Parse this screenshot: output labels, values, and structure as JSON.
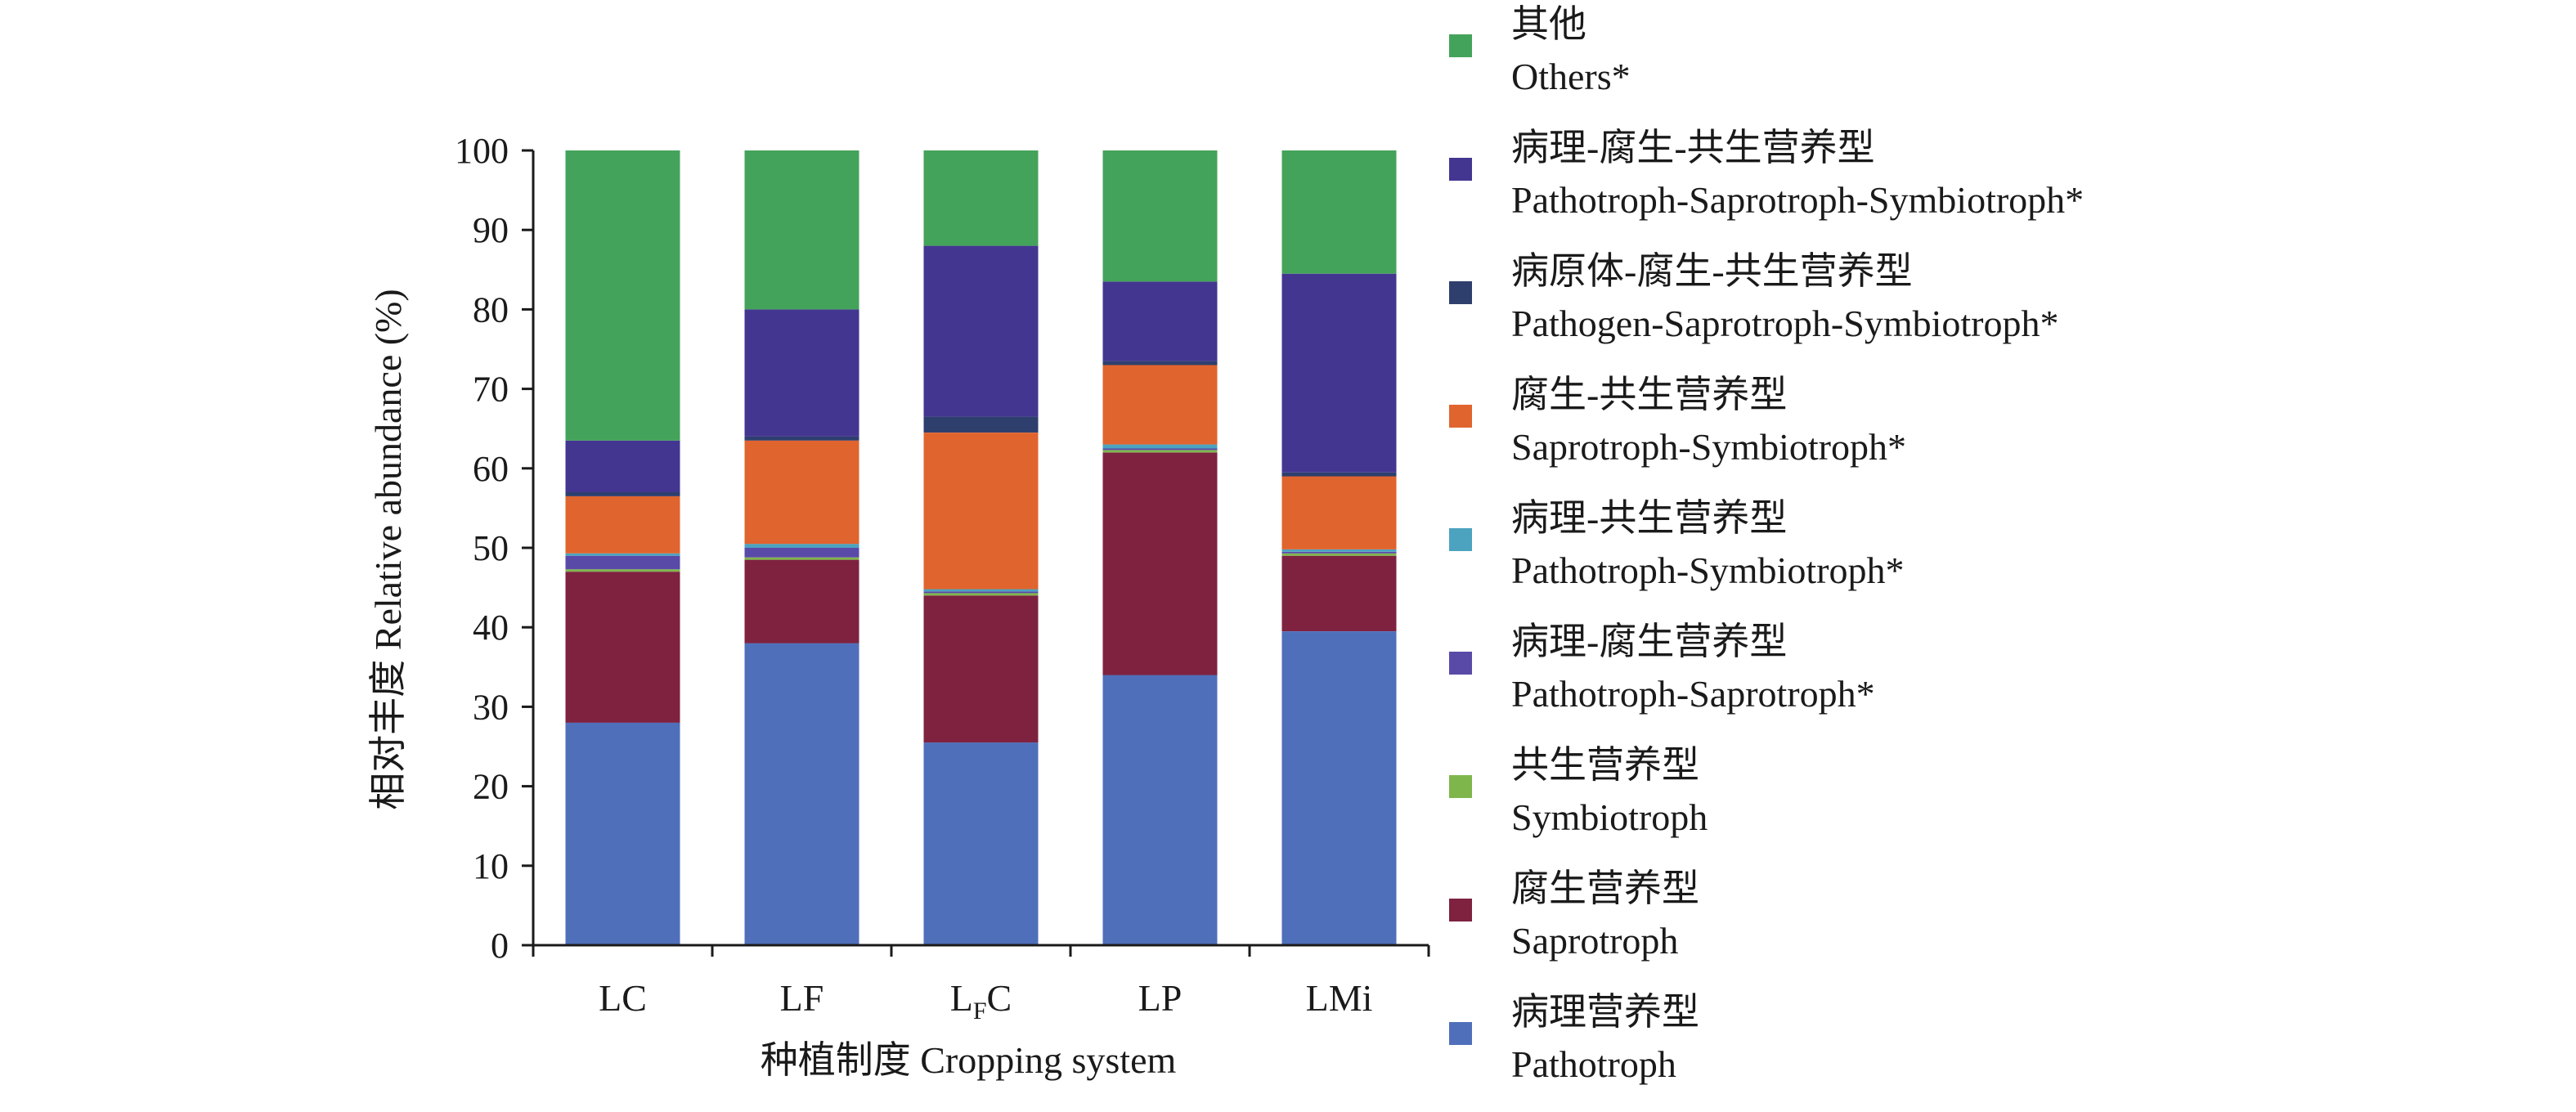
{
  "chart_data": {
    "type": "bar",
    "stacked": true,
    "ylabel": "相对丰度 Relative abundance (%)",
    "xlabel": "种植制度 Cropping system",
    "ylim": [
      0,
      100
    ],
    "yticks": [
      "0",
      "10",
      "20",
      "30",
      "40",
      "50",
      "60",
      "70",
      "80",
      "90",
      "100"
    ],
    "categories": [
      {
        "main": "LC",
        "sub": "",
        "tail": ""
      },
      {
        "main": "LF",
        "sub": "",
        "tail": ""
      },
      {
        "main": "L",
        "sub": "F",
        "tail": "C"
      },
      {
        "main": "LP",
        "sub": "",
        "tail": ""
      },
      {
        "main": "LMi",
        "sub": "",
        "tail": ""
      }
    ],
    "series": [
      {
        "name": "Pathotroph",
        "name_zh": "病理营养型",
        "color": "#4f6fba",
        "values": [
          28.0,
          38.0,
          25.5,
          34.0,
          39.5
        ]
      },
      {
        "name": "Saprotroph",
        "name_zh": "腐生营养型",
        "color": "#7e2240",
        "values": [
          19.0,
          10.5,
          18.5,
          28.0,
          9.5
        ]
      },
      {
        "name": "Symbiotroph",
        "name_zh": "共生营养型",
        "color": "#7fb64c",
        "values": [
          0.3,
          0.3,
          0.3,
          0.3,
          0.3
        ]
      },
      {
        "name": "Pathotroph-Saprotroph*",
        "name_zh": "病理-腐生营养型",
        "color": "#5a4aa8",
        "values": [
          1.7,
          1.2,
          0.2,
          0.2,
          0.2
        ]
      },
      {
        "name": "Pathotroph-Symbiotroph*",
        "name_zh": "病理-共生营养型",
        "color": "#4ba3bf",
        "values": [
          0.3,
          0.5,
          0.3,
          0.5,
          0.3
        ]
      },
      {
        "name": "Saprotroph-Symbiotroph*",
        "name_zh": "腐生-共生营养型",
        "color": "#e0642e",
        "values": [
          7.2,
          13.0,
          19.7,
          10.0,
          9.2
        ]
      },
      {
        "name": "Pathogen-Saprotroph-Symbiotroph*",
        "name_zh": "病原体-腐生-共生营养型",
        "color": "#2e3f6e",
        "values": [
          0.5,
          0.5,
          2.0,
          0.5,
          0.5
        ]
      },
      {
        "name": "Pathotroph-Saprotroph-Symbiotroph*",
        "name_zh": "病理-腐生-共生营养型",
        "color": "#433691",
        "values": [
          6.5,
          16.0,
          21.5,
          10.0,
          25.0
        ]
      },
      {
        "name": "Others*",
        "name_zh": "其他",
        "color": "#44a35a",
        "values": [
          36.5,
          20.0,
          12.0,
          16.5,
          15.5
        ]
      }
    ],
    "legend": {
      "position": "right",
      "order": [
        {
          "zh": "其他",
          "en": "Others*"
        },
        {
          "zh": "病理-腐生-共生营养型",
          "en": "Pathotroph-Saprotroph-Symbiotroph*"
        },
        {
          "zh": "病原体-腐生-共生营养型",
          "en": "Pathogen-Saprotroph-Symbiotroph*"
        },
        {
          "zh": "腐生-共生营养型",
          "en": "Saprotroph-Symbiotroph*"
        },
        {
          "zh": "病理-共生营养型",
          "en": "Pathotroph-Symbiotroph*"
        },
        {
          "zh": "病理-腐生营养型",
          "en": "Pathotroph-Saprotroph*"
        },
        {
          "zh": "共生营养型",
          "en": "Symbiotroph"
        },
        {
          "zh": "腐生营养型",
          "en": "Saprotroph"
        },
        {
          "zh": "病理营养型",
          "en": "Pathotroph"
        }
      ],
      "colors": [
        "#44a35a",
        "#433691",
        "#2e3f6e",
        "#e0642e",
        "#4ba3bf",
        "#5a4aa8",
        "#7fb64c",
        "#7e2240",
        "#4f6fba"
      ]
    },
    "grid": false
  }
}
